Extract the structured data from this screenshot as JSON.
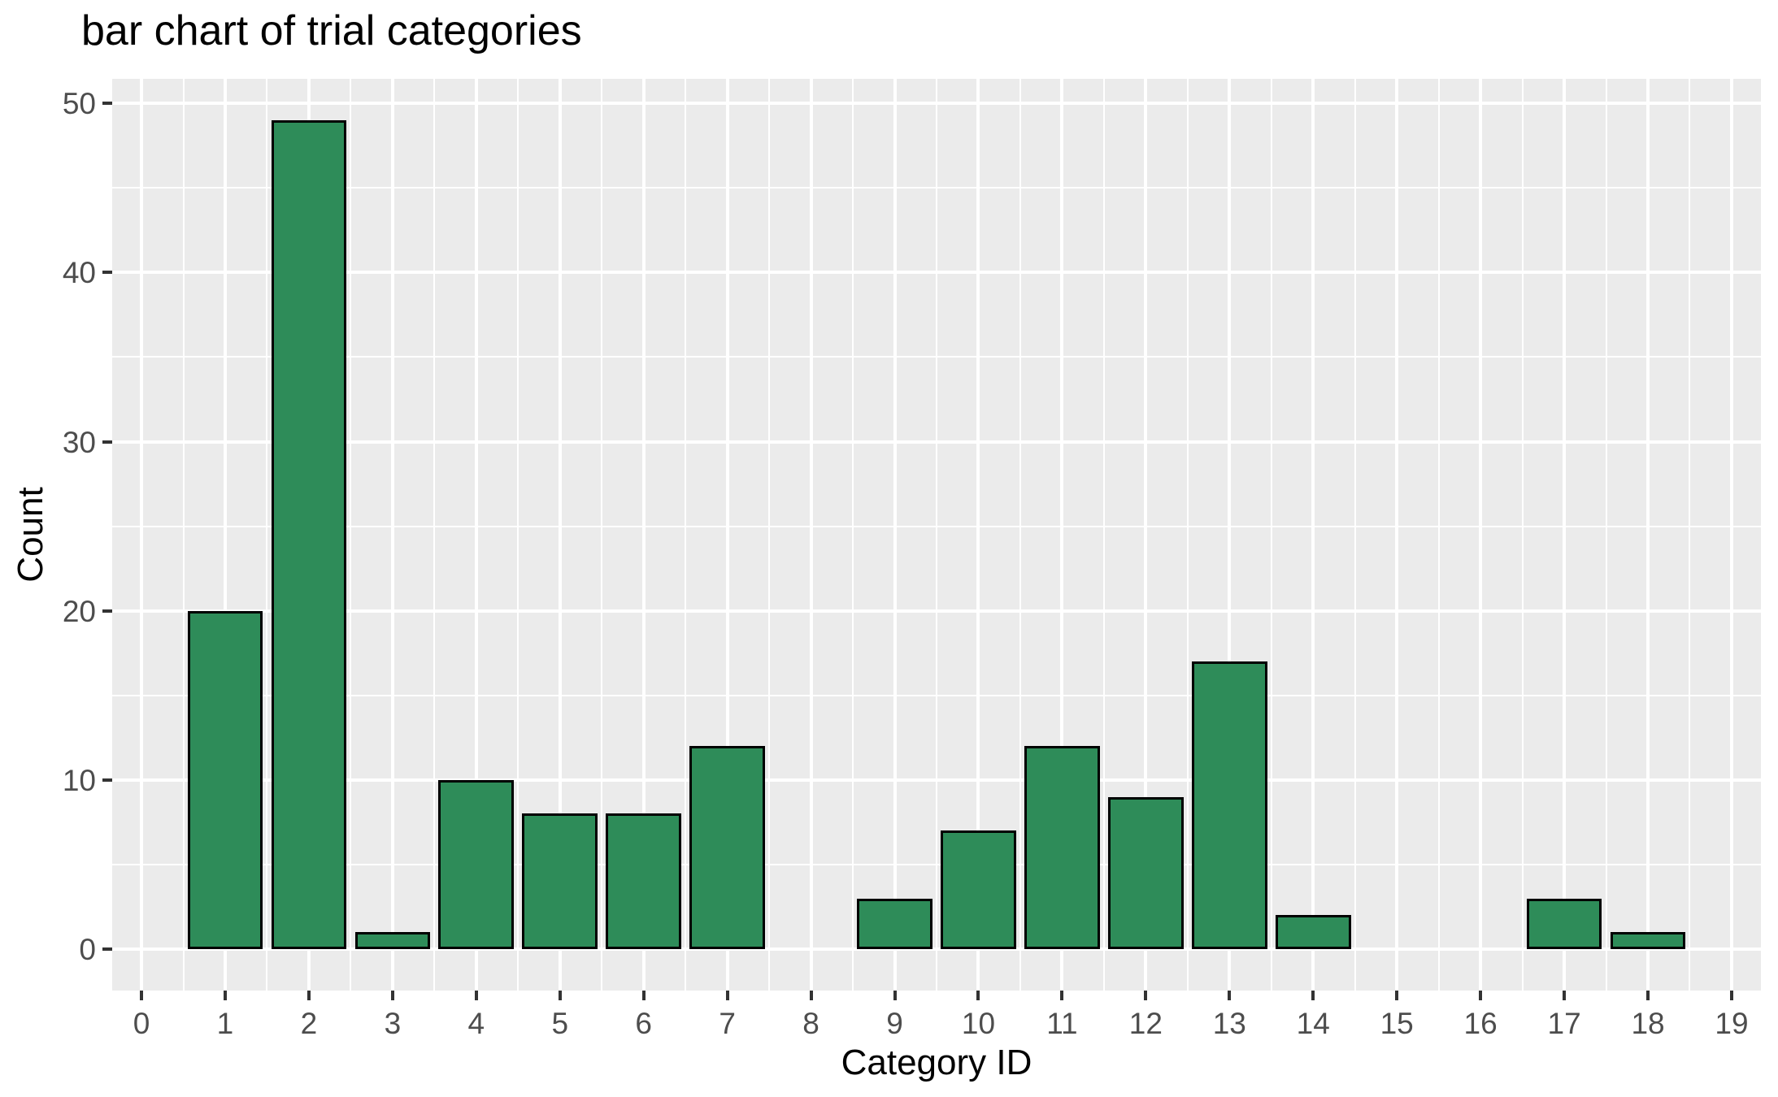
{
  "chart_data": {
    "type": "bar",
    "title": "bar chart of trial categories",
    "xlabel": "Category ID",
    "ylabel": "Count",
    "categories": [
      0,
      1,
      2,
      3,
      4,
      5,
      6,
      7,
      8,
      9,
      10,
      11,
      12,
      13,
      14,
      15,
      16,
      17,
      18,
      19
    ],
    "values": [
      0,
      20,
      49,
      1,
      10,
      8,
      8,
      12,
      0,
      3,
      7,
      12,
      9,
      17,
      2,
      0,
      0,
      3,
      1,
      0
    ],
    "x_ticks": [
      0,
      1,
      2,
      3,
      4,
      5,
      6,
      7,
      8,
      9,
      10,
      11,
      12,
      13,
      14,
      15,
      16,
      17,
      18,
      19
    ],
    "y_ticks": [
      0,
      10,
      20,
      30,
      40,
      50
    ],
    "y_minor_ticks": [
      5,
      15,
      25,
      35,
      45
    ],
    "x_domain": [
      -0.35,
      19.35
    ],
    "y_domain": [
      -2.45,
      51.45
    ],
    "ylim": [
      0,
      50
    ],
    "bar_width": 0.9,
    "grid": true,
    "legend": false,
    "colors": {
      "bar_fill": "#2E8C59",
      "bar_stroke": "#000000",
      "panel_background": "#EBEBEB",
      "gridline": "#FFFFFF",
      "tick_mark": "#333333",
      "tick_label": "#4D4D4D",
      "title": "#000000"
    }
  }
}
